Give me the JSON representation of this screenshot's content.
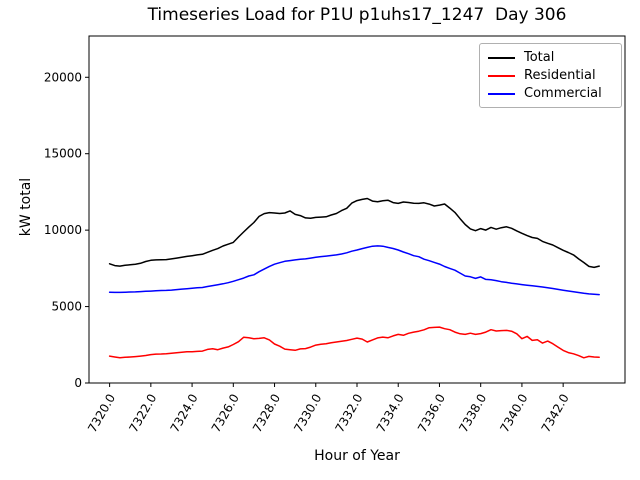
{
  "chart_data": {
    "type": "line",
    "title": "Timeseries Load for P1U p1uhs17_1247  Day 306",
    "xlabel": "Hour of Year",
    "ylabel": "kW total",
    "xlim": [
      7319.0,
      7345.0
    ],
    "ylim": [
      0,
      22700
    ],
    "grid": false,
    "legend_position": "upper right",
    "xtick_rotation": 60,
    "xticks": [
      7320,
      7322,
      7324,
      7326,
      7328,
      7330,
      7332,
      7334,
      7336,
      7338,
      7340,
      7342
    ],
    "xtick_labels": [
      "7320.0",
      "7322.0",
      "7324.0",
      "7326.0",
      "7328.0",
      "7330.0",
      "7332.0",
      "7334.0",
      "7336.0",
      "7338.0",
      "7340.0",
      "7342.0"
    ],
    "yticks": [
      0,
      5000,
      10000,
      15000,
      20000
    ],
    "ytick_labels": [
      "0",
      "5000",
      "10000",
      "15000",
      "20000"
    ],
    "x": [
      7320.0,
      7320.25,
      7320.5,
      7320.75,
      7321.0,
      7321.25,
      7321.5,
      7321.75,
      7322.0,
      7322.25,
      7322.5,
      7322.75,
      7323.0,
      7323.25,
      7323.5,
      7323.75,
      7324.0,
      7324.25,
      7324.5,
      7324.75,
      7325.0,
      7325.25,
      7325.5,
      7325.75,
      7326.0,
      7326.25,
      7326.5,
      7326.75,
      7327.0,
      7327.25,
      7327.5,
      7327.75,
      7328.0,
      7328.25,
      7328.5,
      7328.75,
      7329.0,
      7329.25,
      7329.5,
      7329.75,
      7330.0,
      7330.25,
      7330.5,
      7330.75,
      7331.0,
      7331.25,
      7331.5,
      7331.75,
      7332.0,
      7332.25,
      7332.5,
      7332.75,
      7333.0,
      7333.25,
      7333.5,
      7333.75,
      7334.0,
      7334.25,
      7334.5,
      7334.75,
      7335.0,
      7335.25,
      7335.5,
      7335.75,
      7336.0,
      7336.25,
      7336.5,
      7336.75,
      7337.0,
      7337.25,
      7337.5,
      7337.75,
      7338.0,
      7338.25,
      7338.5,
      7338.75,
      7339.0,
      7339.25,
      7339.5,
      7339.75,
      7340.0,
      7340.25,
      7340.5,
      7340.75,
      7341.0,
      7341.25,
      7341.5,
      7341.75,
      7342.0,
      7342.25,
      7342.5,
      7342.75,
      7343.0,
      7343.25,
      7343.5,
      7343.75
    ],
    "series": [
      {
        "name": "Total",
        "color": "#000000",
        "values": [
          7800,
          7680,
          7650,
          7700,
          7740,
          7770,
          7830,
          7950,
          8030,
          8050,
          8060,
          8070,
          8120,
          8170,
          8220,
          8280,
          8330,
          8380,
          8420,
          8550,
          8680,
          8790,
          8960,
          9080,
          9200,
          9550,
          9880,
          10200,
          10500,
          10900,
          11080,
          11150,
          11120,
          11090,
          11120,
          11260,
          11030,
          10950,
          10800,
          10780,
          10830,
          10850,
          10870,
          10990,
          11090,
          11280,
          11430,
          11770,
          11930,
          12010,
          12070,
          11900,
          11860,
          11920,
          11960,
          11800,
          11750,
          11840,
          11810,
          11760,
          11750,
          11790,
          11700,
          11580,
          11640,
          11710,
          11440,
          11160,
          10750,
          10370,
          10080,
          9960,
          10100,
          10000,
          10180,
          10060,
          10160,
          10220,
          10120,
          9950,
          9790,
          9640,
          9520,
          9460,
          9260,
          9140,
          9030,
          8850,
          8680,
          8540,
          8380,
          8120,
          7880,
          7630,
          7560,
          7650
        ]
      },
      {
        "name": "Residential",
        "color": "#ff0000",
        "values": [
          1760,
          1700,
          1650,
          1680,
          1700,
          1730,
          1760,
          1800,
          1860,
          1890,
          1900,
          1920,
          1950,
          1980,
          2010,
          2040,
          2050,
          2070,
          2090,
          2200,
          2240,
          2180,
          2280,
          2360,
          2520,
          2700,
          2990,
          2960,
          2900,
          2920,
          2960,
          2820,
          2550,
          2410,
          2220,
          2180,
          2140,
          2230,
          2250,
          2350,
          2480,
          2530,
          2570,
          2630,
          2680,
          2730,
          2780,
          2860,
          2940,
          2870,
          2680,
          2820,
          2950,
          3000,
          2960,
          3080,
          3180,
          3120,
          3250,
          3330,
          3390,
          3480,
          3620,
          3640,
          3660,
          3550,
          3490,
          3330,
          3220,
          3180,
          3260,
          3180,
          3230,
          3330,
          3490,
          3400,
          3430,
          3440,
          3390,
          3220,
          2900,
          3050,
          2790,
          2830,
          2610,
          2740,
          2570,
          2350,
          2130,
          1990,
          1910,
          1790,
          1650,
          1740,
          1700,
          1690
        ]
      },
      {
        "name": "Commercial",
        "color": "#0000ff",
        "values": [
          5940,
          5930,
          5930,
          5940,
          5950,
          5960,
          5980,
          6000,
          6010,
          6030,
          6050,
          6060,
          6080,
          6110,
          6140,
          6170,
          6200,
          6230,
          6250,
          6310,
          6370,
          6430,
          6490,
          6560,
          6650,
          6760,
          6860,
          7000,
          7080,
          7280,
          7450,
          7630,
          7770,
          7870,
          7960,
          8010,
          8050,
          8090,
          8120,
          8170,
          8220,
          8270,
          8300,
          8340,
          8380,
          8440,
          8520,
          8620,
          8700,
          8790,
          8870,
          8950,
          8970,
          8950,
          8870,
          8800,
          8700,
          8570,
          8460,
          8330,
          8260,
          8100,
          8000,
          7890,
          7780,
          7620,
          7500,
          7380,
          7190,
          7000,
          6950,
          6840,
          6940,
          6780,
          6750,
          6700,
          6630,
          6580,
          6520,
          6480,
          6440,
          6400,
          6360,
          6320,
          6280,
          6230,
          6180,
          6120,
          6070,
          6020,
          5970,
          5920,
          5870,
          5830,
          5800,
          5780
        ]
      }
    ]
  }
}
